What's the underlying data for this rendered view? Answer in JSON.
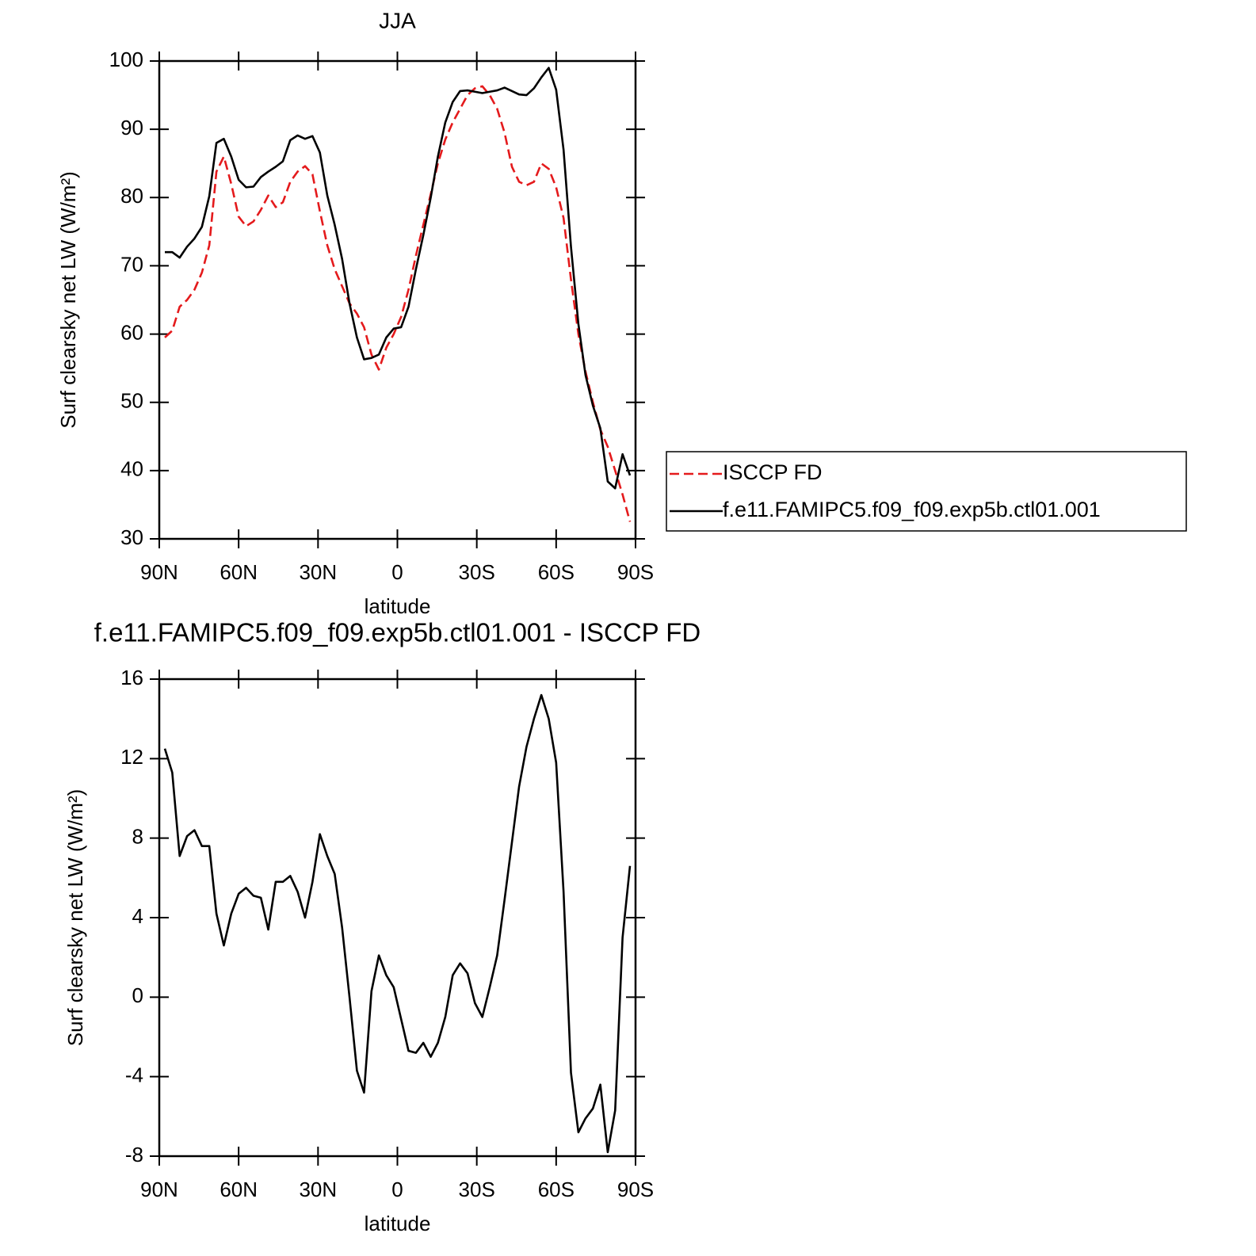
{
  "chart_data": [
    {
      "type": "line",
      "title": "JJA",
      "xlabel": "latitude",
      "ylabel": "Surf clearsky net LW (W/m²)",
      "xlim": [
        90,
        -90
      ],
      "xticks": [
        {
          "value": 90,
          "label": "90N"
        },
        {
          "value": 60,
          "label": "60N"
        },
        {
          "value": 30,
          "label": "30N"
        },
        0,
        {
          "value": -30,
          "label": "30S"
        },
        {
          "value": -60,
          "label": "60S"
        },
        {
          "value": -90,
          "label": "90S"
        }
      ],
      "ylim": [
        30,
        100
      ],
      "yticks": [
        30,
        40,
        50,
        60,
        70,
        80,
        90,
        100
      ],
      "legend": true,
      "x": [
        87.9,
        85.1,
        82.3,
        79.5,
        76.7,
        73.9,
        71.1,
        68.4,
        65.6,
        62.8,
        60.0,
        57.2,
        54.4,
        51.6,
        48.8,
        46.0,
        43.3,
        40.5,
        37.7,
        34.9,
        32.1,
        29.3,
        26.5,
        23.7,
        20.9,
        18.1,
        15.3,
        12.6,
        9.8,
        7.0,
        4.2,
        1.4,
        -1.4,
        -4.2,
        -7.0,
        -9.8,
        -12.6,
        -15.3,
        -18.1,
        -20.9,
        -23.7,
        -26.5,
        -29.3,
        -32.1,
        -34.9,
        -37.7,
        -40.5,
        -43.3,
        -46.0,
        -48.8,
        -51.6,
        -54.4,
        -57.2,
        -60.0,
        -62.8,
        -65.6,
        -68.4,
        -71.1,
        -73.9,
        -76.7,
        -79.5,
        -82.3,
        -85.1,
        -87.9
      ],
      "series": [
        {
          "name": "ISCCP FD",
          "color": "#e41a1c",
          "dash": true,
          "values": [
            59.5,
            60.5,
            64,
            65,
            66.5,
            69,
            73,
            83.8,
            86,
            82,
            77.2,
            75.8,
            76.5,
            78.2,
            80.3,
            78.6,
            79.3,
            82.3,
            83.8,
            84.6,
            83.4,
            78,
            73,
            69.5,
            67,
            64.5,
            63,
            61,
            57,
            54.8,
            58,
            60,
            62.5,
            66.5,
            71.5,
            76,
            80.5,
            85,
            88.5,
            91,
            93,
            95,
            96,
            96.3,
            95,
            93,
            89.5,
            84.5,
            82.3,
            81.8,
            82.3,
            85,
            84.2,
            81.5,
            77,
            68,
            60,
            54.5,
            50,
            46,
            43.5,
            40,
            36.5,
            32.5
          ]
        },
        {
          "name": "f.e11.FAMIPC5.f09_f09.exp5b.ctl01.001",
          "color": "#000000",
          "dash": false,
          "values": [
            72,
            72,
            71.2,
            72.8,
            74,
            75.7,
            80.2,
            88,
            88.6,
            86,
            82.6,
            81.5,
            81.6,
            83,
            83.8,
            84.5,
            85.3,
            88.4,
            89.1,
            88.6,
            89,
            86.6,
            80.3,
            76,
            71,
            64.5,
            59.5,
            56.3,
            56.5,
            57,
            59.5,
            60.8,
            61,
            64,
            69.5,
            74.5,
            80,
            86,
            91,
            94,
            95.6,
            95.7,
            95.5,
            95.3,
            95.5,
            95.7,
            96.1,
            95.6,
            95.1,
            95.0,
            96,
            97.6,
            99,
            95.8,
            87,
            72.8,
            61.5,
            54,
            49.5,
            46.2,
            38.4,
            37.4,
            42.4,
            39.3
          ]
        }
      ]
    },
    {
      "type": "line",
      "title": "f.e11.FAMIPC5.f09_f09.exp5b.ctl01.001 - ISCCP FD",
      "xlabel": "latitude",
      "ylabel": "Surf clearsky net LW (W/m²)",
      "xlim": [
        90,
        -90
      ],
      "xticks": [
        {
          "value": 90,
          "label": "90N"
        },
        {
          "value": 60,
          "label": "60N"
        },
        {
          "value": 30,
          "label": "30N"
        },
        0,
        {
          "value": -30,
          "label": "30S"
        },
        {
          "value": -60,
          "label": "60S"
        },
        {
          "value": -90,
          "label": "90S"
        }
      ],
      "ylim": [
        -8,
        16
      ],
      "yticks": [
        -8,
        -4,
        0,
        4,
        8,
        12,
        16
      ],
      "legend": false,
      "x": [
        87.9,
        85.1,
        82.3,
        79.5,
        76.7,
        73.9,
        71.1,
        68.4,
        65.6,
        62.8,
        60.0,
        57.2,
        54.4,
        51.6,
        48.8,
        46.0,
        43.3,
        40.5,
        37.7,
        34.9,
        32.1,
        29.3,
        26.5,
        23.7,
        20.9,
        18.1,
        15.3,
        12.6,
        9.8,
        7.0,
        4.2,
        1.4,
        -1.4,
        -4.2,
        -7.0,
        -9.8,
        -12.6,
        -15.3,
        -18.1,
        -20.9,
        -23.7,
        -26.5,
        -29.3,
        -32.1,
        -34.9,
        -37.7,
        -40.5,
        -43.3,
        -46.0,
        -48.8,
        -51.6,
        -54.4,
        -57.2,
        -60.0,
        -62.8,
        -65.6,
        -68.4,
        -71.1,
        -73.9,
        -76.7,
        -79.5,
        -82.3,
        -85.1,
        -87.9
      ],
      "series": [
        {
          "color": "#000000",
          "dash": false,
          "values": [
            12.5,
            11.3,
            7.1,
            8.1,
            8.4,
            7.6,
            7.6,
            4.2,
            2.6,
            4.2,
            5.2,
            5.5,
            5.1,
            5.0,
            3.4,
            5.8,
            5.8,
            6.1,
            5.3,
            4.0,
            5.8,
            8.2,
            7.1,
            6.2,
            3.5,
            0,
            -3.7,
            -4.8,
            0.3,
            2.1,
            1.1,
            0.5,
            -1.1,
            -2.7,
            -2.8,
            -2.3,
            -3.0,
            -2.3,
            -1.0,
            1.1,
            1.7,
            1.2,
            -0.3,
            -1.0,
            0.5,
            2.1,
            4.9,
            7.8,
            10.6,
            12.6,
            14.0,
            15.2,
            14.0,
            11.8,
            5.3,
            -3.8,
            -6.8,
            -6.1,
            -5.6,
            -4.4,
            -7.8,
            -5.7,
            3.0,
            6.6
          ]
        }
      ]
    }
  ]
}
